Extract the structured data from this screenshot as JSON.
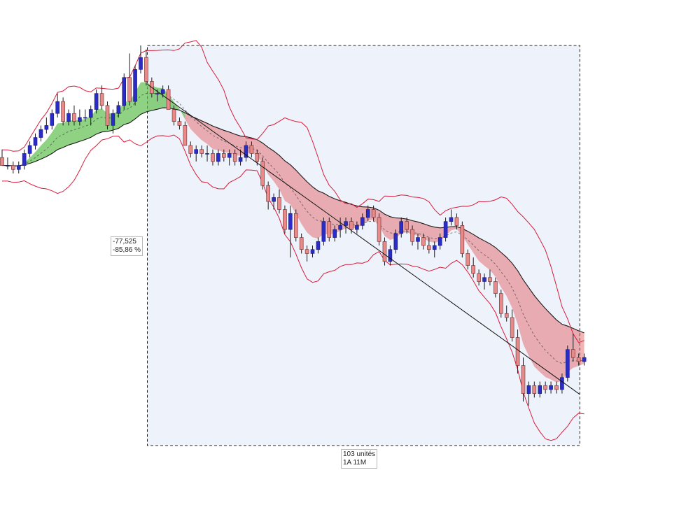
{
  "measure": {
    "price_change": "-77,525",
    "percent_change": "-85,86 %",
    "bar_count": "103 unités",
    "period": "1A 11M"
  },
  "colors": {
    "bull_candle": "#2b2bc8",
    "bear_candle": "#e88a8a",
    "bull_cloud": "#5fbf4f",
    "bear_cloud": "#dd4a4a",
    "bollinger": "#d81b3a",
    "slow_average": "#1a1a1a",
    "measure_fill": "#eef2fb"
  },
  "chart_data": {
    "type": "candlestick",
    "grid": false,
    "legend": "none",
    "value_at_start": 90.3,
    "value_at_end": 12.8,
    "overlays": [
      "bollinger-bands",
      "moving-average",
      "fast-average-cloud"
    ],
    "note_values": "relative price levels read from candle geometry; axes not displayed",
    "candles": [
      {
        "o": 72,
        "h": 74,
        "l": 70,
        "c": 70
      },
      {
        "o": 70,
        "h": 72,
        "l": 69,
        "c": 70
      },
      {
        "o": 70,
        "h": 71,
        "l": 68,
        "c": 69
      },
      {
        "o": 69,
        "h": 71,
        "l": 68,
        "c": 70
      },
      {
        "o": 70,
        "h": 74,
        "l": 69,
        "c": 73
      },
      {
        "o": 73,
        "h": 76,
        "l": 72,
        "c": 75
      },
      {
        "o": 75,
        "h": 78,
        "l": 74,
        "c": 77
      },
      {
        "o": 77,
        "h": 80,
        "l": 76,
        "c": 79
      },
      {
        "o": 79,
        "h": 82,
        "l": 78,
        "c": 80
      },
      {
        "o": 80,
        "h": 84,
        "l": 79,
        "c": 83
      },
      {
        "o": 83,
        "h": 88,
        "l": 82,
        "c": 86
      },
      {
        "o": 86,
        "h": 87,
        "l": 80,
        "c": 81
      },
      {
        "o": 81,
        "h": 84,
        "l": 80,
        "c": 83
      },
      {
        "o": 83,
        "h": 85,
        "l": 80,
        "c": 81
      },
      {
        "o": 81,
        "h": 84,
        "l": 80,
        "c": 82
      },
      {
        "o": 82,
        "h": 84,
        "l": 81,
        "c": 82
      },
      {
        "o": 82,
        "h": 85,
        "l": 80,
        "c": 84
      },
      {
        "o": 84,
        "h": 89,
        "l": 83,
        "c": 88
      },
      {
        "o": 88,
        "h": 90,
        "l": 84,
        "c": 85
      },
      {
        "o": 85,
        "h": 86,
        "l": 79,
        "c": 80
      },
      {
        "o": 80,
        "h": 84,
        "l": 78,
        "c": 83
      },
      {
        "o": 83,
        "h": 86,
        "l": 82,
        "c": 85
      },
      {
        "o": 85,
        "h": 93,
        "l": 84,
        "c": 92
      },
      {
        "o": 92,
        "h": 98,
        "l": 85,
        "c": 86
      },
      {
        "o": 86,
        "h": 95,
        "l": 85,
        "c": 94
      },
      {
        "o": 94,
        "h": 100,
        "l": 93,
        "c": 97
      },
      {
        "o": 97,
        "h": 99,
        "l": 90,
        "c": 91
      },
      {
        "o": 91,
        "h": 92,
        "l": 87,
        "c": 88
      },
      {
        "o": 88,
        "h": 89,
        "l": 86,
        "c": 88
      },
      {
        "o": 88,
        "h": 90,
        "l": 87,
        "c": 89
      },
      {
        "o": 89,
        "h": 90,
        "l": 84,
        "c": 84
      },
      {
        "o": 84,
        "h": 85,
        "l": 80,
        "c": 81
      },
      {
        "o": 81,
        "h": 82,
        "l": 79,
        "c": 80
      },
      {
        "o": 80,
        "h": 81,
        "l": 75,
        "c": 75
      },
      {
        "o": 75,
        "h": 76,
        "l": 72,
        "c": 73
      },
      {
        "o": 73,
        "h": 75,
        "l": 71,
        "c": 74
      },
      {
        "o": 74,
        "h": 75,
        "l": 72,
        "c": 73
      },
      {
        "o": 73,
        "h": 75,
        "l": 71,
        "c": 73
      },
      {
        "o": 73,
        "h": 74,
        "l": 70,
        "c": 71
      },
      {
        "o": 71,
        "h": 74,
        "l": 70,
        "c": 73
      },
      {
        "o": 73,
        "h": 74,
        "l": 71,
        "c": 72
      },
      {
        "o": 72,
        "h": 74,
        "l": 70,
        "c": 73
      },
      {
        "o": 73,
        "h": 74,
        "l": 70,
        "c": 71
      },
      {
        "o": 71,
        "h": 74,
        "l": 70,
        "c": 72
      },
      {
        "o": 72,
        "h": 76,
        "l": 71,
        "c": 75
      },
      {
        "o": 75,
        "h": 76,
        "l": 72,
        "c": 73
      },
      {
        "o": 73,
        "h": 74,
        "l": 70,
        "c": 71
      },
      {
        "o": 71,
        "h": 72,
        "l": 64,
        "c": 65
      },
      {
        "o": 65,
        "h": 66,
        "l": 59,
        "c": 61
      },
      {
        "o": 61,
        "h": 63,
        "l": 59,
        "c": 62
      },
      {
        "o": 62,
        "h": 64,
        "l": 58,
        "c": 59
      },
      {
        "o": 59,
        "h": 60,
        "l": 53,
        "c": 54
      },
      {
        "o": 54,
        "h": 60,
        "l": 47,
        "c": 58
      },
      {
        "o": 58,
        "h": 59,
        "l": 51,
        "c": 52
      },
      {
        "o": 52,
        "h": 53,
        "l": 48,
        "c": 49
      },
      {
        "o": 49,
        "h": 50,
        "l": 46,
        "c": 48
      },
      {
        "o": 48,
        "h": 50,
        "l": 47,
        "c": 49
      },
      {
        "o": 49,
        "h": 52,
        "l": 48,
        "c": 51
      },
      {
        "o": 51,
        "h": 57,
        "l": 50,
        "c": 56
      },
      {
        "o": 56,
        "h": 57,
        "l": 51,
        "c": 52
      },
      {
        "o": 52,
        "h": 55,
        "l": 51,
        "c": 54
      },
      {
        "o": 54,
        "h": 57,
        "l": 52,
        "c": 55
      },
      {
        "o": 55,
        "h": 57,
        "l": 53,
        "c": 56
      },
      {
        "o": 56,
        "h": 57,
        "l": 53,
        "c": 54
      },
      {
        "o": 54,
        "h": 56,
        "l": 53,
        "c": 55
      },
      {
        "o": 55,
        "h": 58,
        "l": 54,
        "c": 57
      },
      {
        "o": 57,
        "h": 60,
        "l": 56,
        "c": 59
      },
      {
        "o": 59,
        "h": 60,
        "l": 56,
        "c": 57
      },
      {
        "o": 57,
        "h": 58,
        "l": 50,
        "c": 51
      },
      {
        "o": 51,
        "h": 52,
        "l": 45,
        "c": 46
      },
      {
        "o": 46,
        "h": 50,
        "l": 45,
        "c": 49
      },
      {
        "o": 49,
        "h": 54,
        "l": 48,
        "c": 53
      },
      {
        "o": 53,
        "h": 57,
        "l": 52,
        "c": 56
      },
      {
        "o": 56,
        "h": 57,
        "l": 53,
        "c": 54
      },
      {
        "o": 54,
        "h": 55,
        "l": 50,
        "c": 51
      },
      {
        "o": 51,
        "h": 53,
        "l": 49,
        "c": 52
      },
      {
        "o": 52,
        "h": 53,
        "l": 49,
        "c": 50
      },
      {
        "o": 50,
        "h": 52,
        "l": 48,
        "c": 49
      },
      {
        "o": 49,
        "h": 51,
        "l": 47,
        "c": 50
      },
      {
        "o": 50,
        "h": 53,
        "l": 49,
        "c": 52
      },
      {
        "o": 52,
        "h": 57,
        "l": 51,
        "c": 56
      },
      {
        "o": 56,
        "h": 59,
        "l": 55,
        "c": 57
      },
      {
        "o": 57,
        "h": 58,
        "l": 54,
        "c": 55
      },
      {
        "o": 55,
        "h": 56,
        "l": 47,
        "c": 48
      },
      {
        "o": 48,
        "h": 49,
        "l": 44,
        "c": 45
      },
      {
        "o": 45,
        "h": 47,
        "l": 42,
        "c": 43
      },
      {
        "o": 43,
        "h": 44,
        "l": 40,
        "c": 41
      },
      {
        "o": 41,
        "h": 43,
        "l": 39,
        "c": 42
      },
      {
        "o": 42,
        "h": 44,
        "l": 40,
        "c": 41
      },
      {
        "o": 41,
        "h": 42,
        "l": 37,
        "c": 38
      },
      {
        "o": 38,
        "h": 39,
        "l": 32,
        "c": 33
      },
      {
        "o": 33,
        "h": 35,
        "l": 31,
        "c": 32
      },
      {
        "o": 32,
        "h": 34,
        "l": 26,
        "c": 27
      },
      {
        "o": 27,
        "h": 29,
        "l": 18,
        "c": 20
      },
      {
        "o": 20,
        "h": 22,
        "l": 11,
        "c": 13
      },
      {
        "o": 13,
        "h": 16,
        "l": 10,
        "c": 15
      },
      {
        "o": 15,
        "h": 16,
        "l": 12,
        "c": 13
      },
      {
        "o": 13,
        "h": 16,
        "l": 12,
        "c": 15
      },
      {
        "o": 15,
        "h": 16,
        "l": 13,
        "c": 14
      },
      {
        "o": 14,
        "h": 16,
        "l": 13,
        "c": 15
      },
      {
        "o": 15,
        "h": 16,
        "l": 13,
        "c": 14
      },
      {
        "o": 14,
        "h": 18,
        "l": 13,
        "c": 17
      },
      {
        "o": 17,
        "h": 25,
        "l": 16,
        "c": 24
      },
      {
        "o": 24,
        "h": 28,
        "l": 21,
        "c": 22
      },
      {
        "o": 22,
        "h": 23,
        "l": 20,
        "c": 21
      },
      {
        "o": 21,
        "h": 23,
        "l": 20,
        "c": 22
      }
    ]
  }
}
